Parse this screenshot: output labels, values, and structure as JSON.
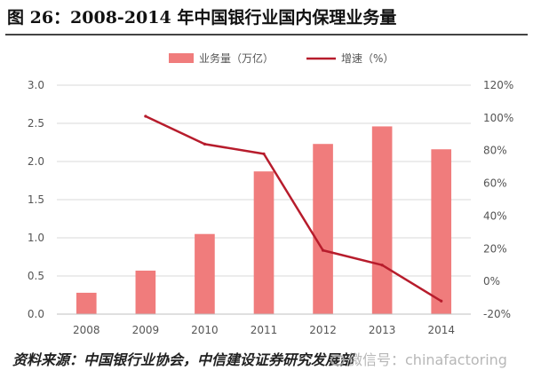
{
  "figure": {
    "title": "图 26：2008-2014 年中国银行业国内保理业务量",
    "source": "资料来源：中国银行业协会，中信建设证券研究发展部",
    "watermark": "微信号：chinafactoring"
  },
  "chart_data": {
    "type": "bar",
    "categories": [
      "2008",
      "2009",
      "2010",
      "2011",
      "2012",
      "2013",
      "2014"
    ],
    "series": [
      {
        "name": "业务量（万亿）",
        "type": "bar",
        "axis": "left",
        "values": [
          0.28,
          0.57,
          1.05,
          1.87,
          2.23,
          2.46,
          2.16
        ],
        "color": "#f07c7c"
      },
      {
        "name": "增速（%）",
        "type": "line",
        "axis": "right",
        "values": [
          null,
          101,
          84,
          78,
          19,
          10,
          -12
        ],
        "color": "#b71c2c"
      }
    ],
    "y_left": {
      "min": 0,
      "max": 3.0,
      "ticks": [
        "0.0",
        "0.5",
        "1.0",
        "1.5",
        "2.0",
        "2.5",
        "3.0"
      ]
    },
    "y_right": {
      "min": -20,
      "max": 120,
      "ticks": [
        "-20%",
        "0%",
        "20%",
        "40%",
        "60%",
        "80%",
        "100%",
        "120%"
      ]
    },
    "grid": true,
    "legend_position": "top"
  }
}
